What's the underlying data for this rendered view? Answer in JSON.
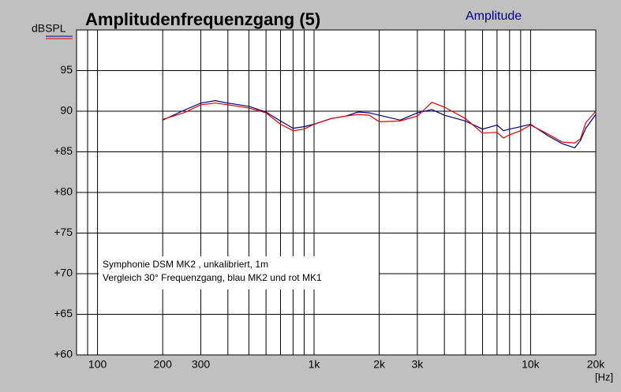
{
  "chart_data": {
    "type": "line",
    "title": "Amplitudenfrequenzgang (5)",
    "subtitle": "Amplitude",
    "y_label": "dBSPL",
    "x_label": "[Hz]",
    "annotations": [
      "Symphonie DSM MK2 , unkalibriert, 1m",
      "Vergleich 30° Frequenzgang, blau MK2 und rot MK1"
    ],
    "log_x": true,
    "grid": true,
    "xlim": [
      80,
      20000
    ],
    "ylim": [
      60,
      100
    ],
    "xticks": [
      100,
      200,
      300,
      {
        "value": 1000,
        "label": "1k"
      },
      {
        "value": 2000,
        "label": "2k"
      },
      {
        "value": 3000,
        "label": "3k"
      },
      {
        "value": 10000,
        "label": "10k"
      },
      {
        "value": 20000,
        "label": "20k"
      }
    ],
    "x_minor_ticks": [
      90,
      400,
      500,
      600,
      700,
      800,
      900,
      4000,
      5000,
      6000,
      7000,
      8000,
      9000
    ],
    "yticks": [
      95,
      90,
      {
        "value": 85,
        "label": "+85"
      },
      {
        "value": 80,
        "label": "+80"
      },
      {
        "value": 75,
        "label": "+75"
      },
      {
        "value": 70,
        "label": "+70"
      },
      {
        "value": 65,
        "label": "+65"
      },
      {
        "value": 60,
        "label": "+60"
      }
    ],
    "x": [
      200,
      250,
      300,
      350,
      400,
      500,
      600,
      700,
      800,
      900,
      1000,
      1200,
      1400,
      1600,
      1800,
      2000,
      2500,
      3000,
      3500,
      4000,
      5000,
      6000,
      7000,
      7500,
      8000,
      9000,
      10000,
      12000,
      14000,
      16000,
      17000,
      18000,
      20000
    ],
    "series": [
      {
        "color": "#000080",
        "values": [
          88.9,
          90.1,
          91.0,
          91.3,
          91.0,
          90.6,
          89.9,
          88.8,
          87.9,
          88.1,
          88.4,
          89.1,
          89.4,
          89.9,
          89.8,
          89.5,
          88.9,
          89.8,
          90.2,
          89.5,
          88.8,
          87.8,
          88.3,
          87.6,
          87.8,
          88.1,
          88.4,
          87.0,
          86.0,
          85.5,
          86.4,
          87.9,
          89.6
        ]
      },
      {
        "color": "#e00000",
        "values": [
          89.0,
          89.8,
          90.8,
          91.0,
          90.8,
          90.4,
          89.8,
          88.4,
          87.6,
          87.8,
          88.4,
          89.1,
          89.4,
          89.6,
          89.5,
          88.7,
          88.8,
          89.4,
          91.1,
          90.5,
          89.1,
          87.3,
          87.4,
          86.7,
          87.1,
          87.6,
          88.3,
          87.2,
          86.2,
          86.1,
          86.6,
          88.6,
          90.0
        ]
      }
    ]
  }
}
